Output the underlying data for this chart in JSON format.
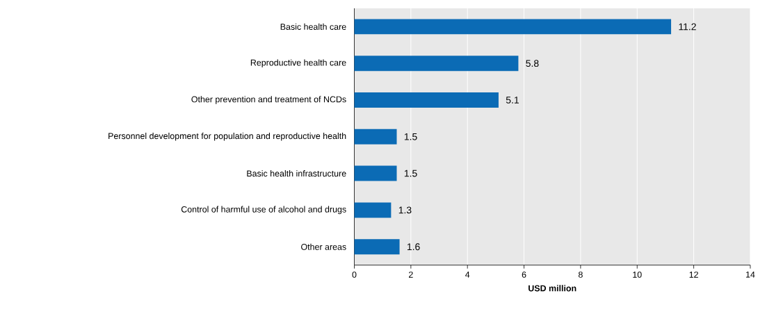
{
  "chart_data": {
    "type": "bar",
    "orientation": "horizontal",
    "xlabel": "USD million",
    "categories": [
      "Basic health care",
      "Reproductive health care",
      "Other prevention and treatment of NCDs",
      "Personnel development for population and reproductive health",
      "Basic health infrastructure",
      "Control of harmful use of alcohol and drugs",
      "Other areas"
    ],
    "values": [
      11.2,
      5.8,
      5.1,
      1.5,
      1.5,
      1.3,
      1.6
    ],
    "color": "#0b6bb5",
    "data_labels": true,
    "grid": "x",
    "xlim": [
      0,
      14
    ],
    "xticks": [
      0,
      2,
      4,
      6,
      8,
      10,
      12,
      14
    ]
  }
}
